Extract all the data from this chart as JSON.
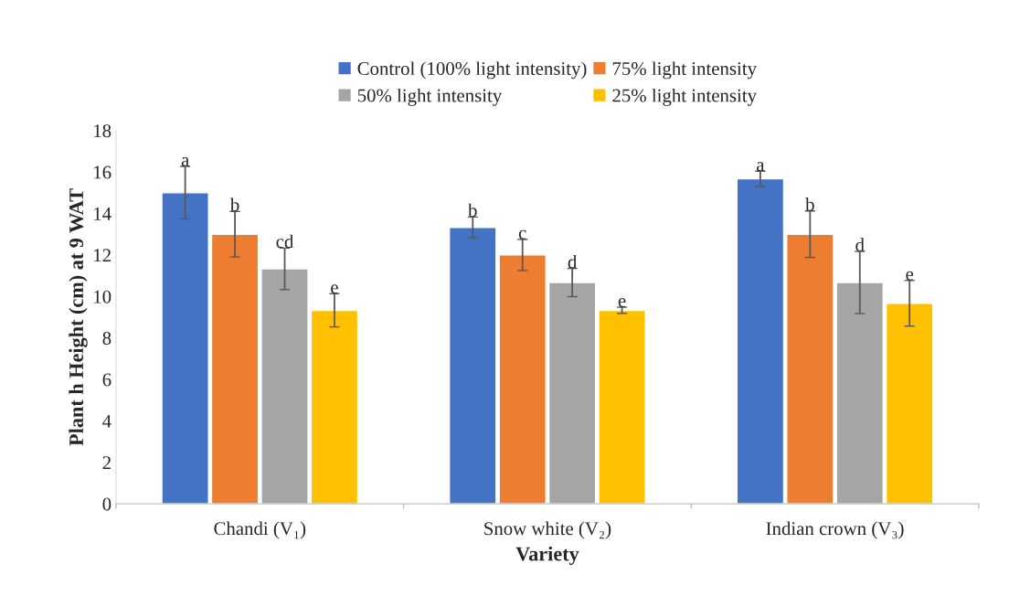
{
  "chart_data": {
    "type": "bar",
    "xlabel": "Variety",
    "ylabel": "Plant h Height (cm) at 9 WAT",
    "categories": [
      "Chandi (V₁)",
      "Snow white (V₂)",
      "Indian crown (V₃)"
    ],
    "series": [
      {
        "name": "Control (100% light intensity)",
        "color": "#4472c4",
        "values": [
          15.0,
          13.33,
          15.67
        ],
        "errors": [
          1.27,
          0.5,
          0.37
        ]
      },
      {
        "name": "75% light intensity",
        "color": "#ed7d31",
        "values": [
          13.0,
          12.0,
          13.0
        ],
        "errors": [
          1.1,
          0.75,
          1.12
        ]
      },
      {
        "name": "50% light intensity",
        "color": "#a5a5a5",
        "values": [
          11.33,
          10.67,
          10.67
        ],
        "errors": [
          1.0,
          0.68,
          1.5
        ]
      },
      {
        "name": "25% light intensity",
        "color": "#ffc000",
        "values": [
          9.33,
          9.33,
          9.67
        ],
        "errors": [
          0.8,
          0.15,
          1.1
        ]
      }
    ],
    "annotations": [
      "a",
      "b",
      "cd",
      "e",
      "b",
      "c",
      "d",
      "e",
      "a",
      "b",
      "d",
      "e"
    ],
    "ylim": [
      0,
      18
    ],
    "yticks": [
      0,
      2,
      4,
      6,
      8,
      10,
      12,
      14,
      16,
      18
    ],
    "grid": false,
    "legend": "top"
  }
}
